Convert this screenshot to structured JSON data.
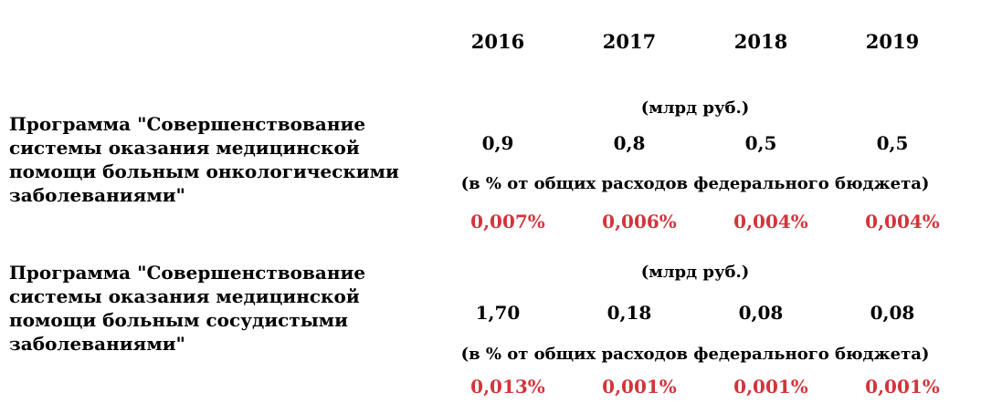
{
  "years": [
    "2016",
    "2017",
    "2018",
    "2019"
  ],
  "programs": [
    {
      "name_lines": [
        "Программа \"Совершенствование",
        "системы оказания медицинской",
        "помощи больным онкологическими",
        "заболеваниями\""
      ],
      "unit_bn": "(млрд руб.)",
      "values_bn": [
        "0,9",
        "0,8",
        "0,5",
        "0,5"
      ],
      "unit_pct": "(в % от общих расходов федерального бюджета)",
      "values_pct": [
        "0,007%",
        "0,006%",
        "0,004%",
        "0,004%"
      ]
    },
    {
      "name_lines": [
        "Программа \"Совершенствование",
        "системы оказания медицинской",
        "помощи больным сосудистыми",
        "заболеваниями\""
      ],
      "unit_bn": "(млрд руб.)",
      "values_bn": [
        "1,70",
        "0,18",
        "0,08",
        "0,08"
      ],
      "unit_pct": "(в % от общих расходов федерального бюджета)",
      "values_pct": [
        "0,013%",
        "0,001%",
        "0,001%",
        "0,001%"
      ]
    }
  ],
  "colors": {
    "text": "#000000",
    "percent": "#d2353c"
  }
}
